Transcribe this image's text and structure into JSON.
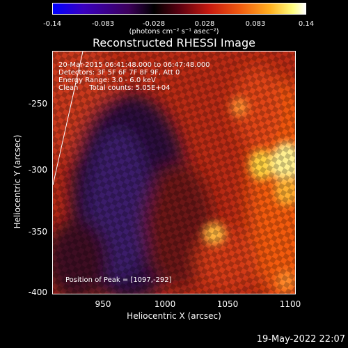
{
  "colorbar": {
    "ticks": [
      "-0.14",
      "-0.083",
      "-0.028",
      "0.028",
      "0.083",
      "0.14"
    ],
    "units": "(photons cm⁻² s⁻¹ asec⁻²)"
  },
  "plot": {
    "title": "Reconstructed RHESSI Image",
    "info_lines": [
      "20-Mar-2015 06:41:48.000 to 06:47:48.000",
      "Detectors: 3F 5F 6F 7F 8F 9F, Att 0",
      "Energy Range: 3.0 - 6.0 keV",
      "Clean     Total counts: 5.05E+04"
    ],
    "peak_label": "Position of Peak = [1097,-292]",
    "xlabel": "Heliocentric X (arcsec)",
    "ylabel": "Heliocentric Y (arcsec)",
    "x_ticks": [
      "950",
      "1000",
      "1050",
      "1100"
    ],
    "y_ticks": [
      "-250",
      "-300",
      "-350",
      "-400"
    ]
  },
  "footer": {
    "timestamp": "19-May-2022 22:07"
  }
}
